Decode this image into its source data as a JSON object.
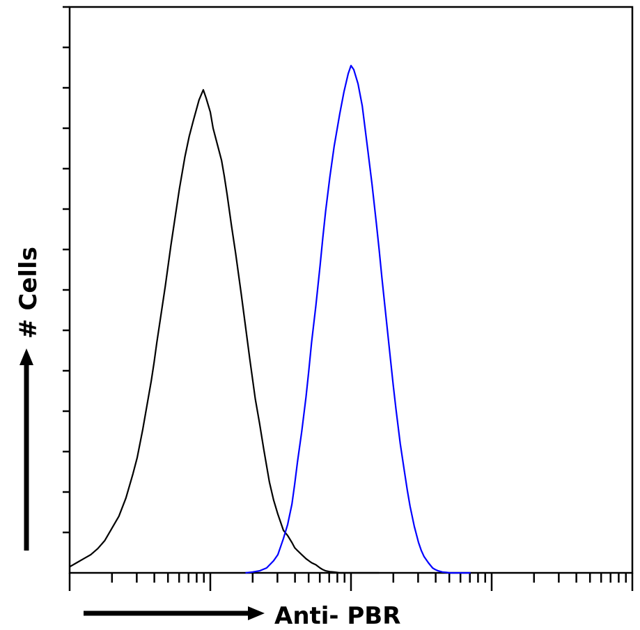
{
  "chart_data": {
    "type": "line",
    "title": "",
    "xlabel": "Anti- PBR",
    "ylabel": "# Cells",
    "x_scale": "log",
    "x_decades": 4,
    "ylim": [
      0,
      14
    ],
    "y_major_ticks": 14,
    "grid": false,
    "legend": "none",
    "series": [
      {
        "color": "#000000",
        "x": [
          0.0,
          0.05,
          0.1,
          0.15,
          0.2,
          0.25,
          0.3,
          0.35,
          0.4,
          0.45,
          0.48,
          0.5,
          0.52,
          0.55,
          0.58,
          0.6,
          0.62,
          0.65,
          0.68,
          0.7,
          0.72,
          0.75,
          0.78,
          0.8,
          0.82,
          0.85,
          0.88,
          0.9,
          0.92,
          0.95,
          0.97,
          1.0,
          1.02,
          1.05,
          1.08,
          1.1,
          1.12,
          1.15,
          1.18,
          1.2,
          1.22,
          1.25,
          1.28,
          1.3,
          1.32,
          1.35,
          1.38,
          1.4,
          1.42,
          1.45,
          1.48,
          1.5,
          1.52,
          1.55,
          1.58,
          1.6,
          1.62,
          1.65,
          1.68,
          1.7,
          1.72,
          1.75,
          1.78,
          1.8,
          1.82,
          1.85,
          1.88,
          1.9,
          1.92,
          1.95,
          1.98,
          2.0,
          2.02,
          2.05,
          2.08,
          2.1,
          2.12,
          2.15,
          2.18,
          2.2
        ],
        "y": [
          0.15,
          0.25,
          0.35,
          0.45,
          0.6,
          0.8,
          1.1,
          1.4,
          1.85,
          2.45,
          2.85,
          3.2,
          3.55,
          4.15,
          4.75,
          5.2,
          5.7,
          6.4,
          7.1,
          7.6,
          8.1,
          8.8,
          9.5,
          9.9,
          10.3,
          10.8,
          11.2,
          11.45,
          11.7,
          11.95,
          11.75,
          11.4,
          11.0,
          10.6,
          10.2,
          9.8,
          9.35,
          8.6,
          7.9,
          7.4,
          6.9,
          6.1,
          5.3,
          4.8,
          4.3,
          3.7,
          3.05,
          2.65,
          2.25,
          1.8,
          1.45,
          1.25,
          1.05,
          0.92,
          0.75,
          0.62,
          0.55,
          0.45,
          0.35,
          0.3,
          0.25,
          0.2,
          0.12,
          0.08,
          0.05,
          0.03,
          0.02,
          0.01,
          0.0,
          0.0,
          0.0,
          0.0,
          0.0,
          0.0,
          0.0,
          0.0,
          0.0,
          0.0,
          0.0,
          0.0
        ]
      },
      {
        "color": "#0000ff",
        "x": [
          1.25,
          1.3,
          1.35,
          1.4,
          1.45,
          1.48,
          1.5,
          1.52,
          1.55,
          1.58,
          1.6,
          1.62,
          1.65,
          1.68,
          1.7,
          1.72,
          1.75,
          1.78,
          1.8,
          1.82,
          1.85,
          1.88,
          1.9,
          1.92,
          1.95,
          1.98,
          2.0,
          2.02,
          2.05,
          2.08,
          2.1,
          2.12,
          2.15,
          2.18,
          2.2,
          2.22,
          2.25,
          2.28,
          2.3,
          2.32,
          2.35,
          2.38,
          2.4,
          2.42,
          2.45,
          2.48,
          2.5,
          2.52,
          2.55,
          2.58,
          2.6,
          2.62,
          2.65,
          2.68,
          2.7,
          2.72,
          2.75,
          2.8,
          2.85
        ],
        "y": [
          0.0,
          0.02,
          0.05,
          0.12,
          0.3,
          0.45,
          0.65,
          0.85,
          1.2,
          1.7,
          2.2,
          2.75,
          3.5,
          4.35,
          5.0,
          5.7,
          6.6,
          7.6,
          8.3,
          8.95,
          9.8,
          10.55,
          10.95,
          11.35,
          11.9,
          12.35,
          12.55,
          12.45,
          12.1,
          11.55,
          11.0,
          10.45,
          9.6,
          8.65,
          8.0,
          7.3,
          6.3,
          5.3,
          4.65,
          4.05,
          3.2,
          2.5,
          2.05,
          1.65,
          1.15,
          0.75,
          0.55,
          0.4,
          0.25,
          0.12,
          0.08,
          0.05,
          0.02,
          0.01,
          0.0,
          0.0,
          0.0,
          0.0,
          0.0
        ]
      }
    ]
  }
}
